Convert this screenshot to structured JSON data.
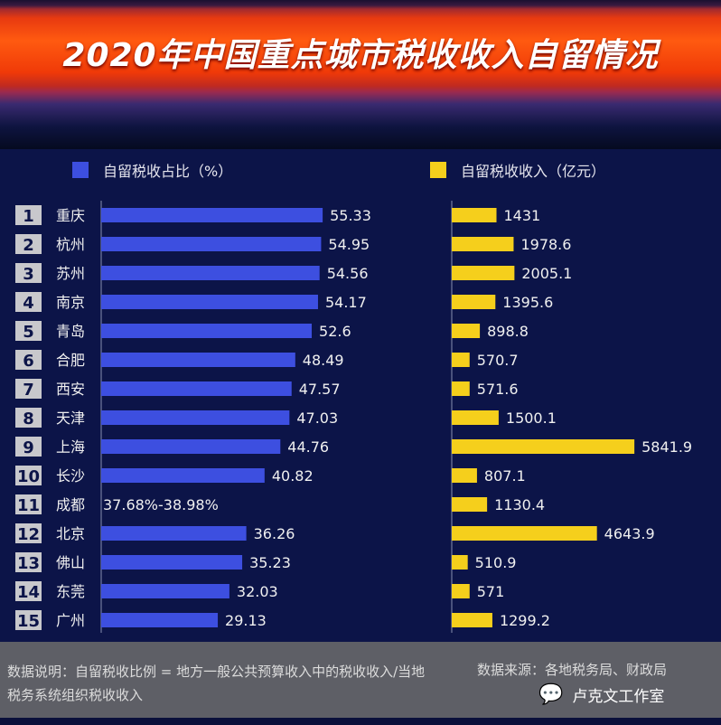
{
  "title": "2020年中国重点城市税收收入自留情况",
  "chart_data": {
    "type": "bar",
    "title": "2020年中国重点城市税收收入自留情况",
    "ranks": [
      "1",
      "2",
      "3",
      "4",
      "5",
      "6",
      "7",
      "8",
      "9",
      "10",
      "11",
      "12",
      "13",
      "14",
      "15"
    ],
    "categories": [
      "重庆",
      "杭州",
      "苏州",
      "南京",
      "青岛",
      "合肥",
      "西安",
      "天津",
      "上海",
      "长沙",
      "成都",
      "北京",
      "佛山",
      "东莞",
      "广州"
    ],
    "series": [
      {
        "name": "自留税收占比（%）",
        "color": "#3d4fe0",
        "values": [
          55.33,
          54.95,
          54.56,
          54.17,
          52.6,
          48.49,
          47.57,
          47.03,
          44.76,
          40.82,
          null,
          36.26,
          35.23,
          32.03,
          29.13
        ],
        "labels": [
          "55.33",
          "54.95",
          "54.56",
          "54.17",
          "52.6",
          "48.49",
          "47.57",
          "47.03",
          "44.76",
          "40.82",
          "37.68%-38.98%",
          "36.26",
          "35.23",
          "32.03",
          "29.13"
        ]
      },
      {
        "name": "自留税收收入（亿元）",
        "color": "#f5cf1c",
        "values": [
          1431,
          1978.6,
          2005.1,
          1395.6,
          898.8,
          570.7,
          571.6,
          1500.1,
          5841.9,
          807.1,
          1130.4,
          4643.9,
          510.9,
          571,
          1299.2
        ],
        "labels": [
          "1431",
          "1978.6",
          "2005.1",
          "1395.6",
          "898.8",
          "570.7",
          "571.6",
          "1500.1",
          "5841.9",
          "807.1",
          "1130.4",
          "4643.9",
          "510.9",
          "571",
          "1299.2"
        ]
      }
    ],
    "grid": false,
    "legend": "top"
  },
  "footer": {
    "note": "数据说明：自留税收比例 = 地方一般公共预算收入中的税收收入/当地税务系统组织税收收入",
    "source": "数据来源：各地税务局、财政局",
    "brand": "卢克文工作室"
  }
}
